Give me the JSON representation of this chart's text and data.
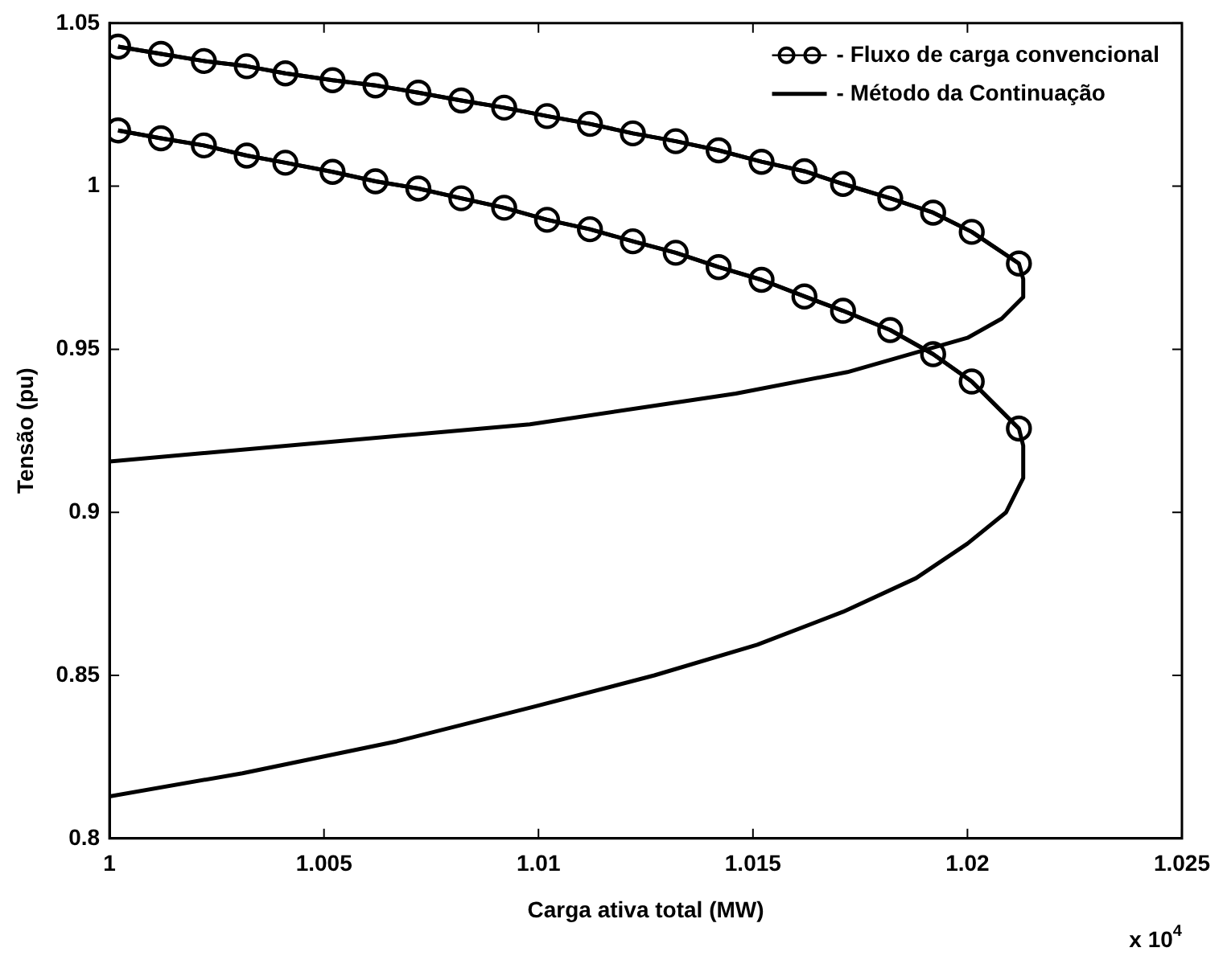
{
  "chart_data": {
    "type": "line",
    "xlabel": "Carga ativa total (MW)",
    "ylabel": "Tensão (pu)",
    "annotations": [
      "x 10$^{4}$"
    ],
    "xlim": [
      1,
      1.025
    ],
    "xticks": [
      1,
      1.005,
      1.01,
      1.015,
      1.02,
      1.025
    ],
    "ylim": [
      0.8,
      1.05
    ],
    "yticks": [
      0.8,
      0.85,
      0.9,
      0.95,
      1,
      1.05
    ],
    "grid": false,
    "legend": "top right",
    "line_style": "solid",
    "series": [
      {
        "name": "- Fluxo de carga convencional",
        "color": "#000000",
        "marker": "circle",
        "x": [
          1.0002,
          1.0012,
          1.0022,
          1.0032,
          1.0041,
          1.0052,
          1.0062,
          1.0072,
          1.0082,
          1.0092,
          1.0102,
          1.0112,
          1.0122,
          1.0132,
          1.0142,
          1.0152,
          1.0162,
          1.0171,
          1.0182,
          1.0192,
          1.0201,
          1.0212
        ],
        "values": [
          1.0428,
          1.0406,
          1.0384,
          1.0368,
          1.0346,
          1.0325,
          1.0309,
          1.0287,
          1.0263,
          1.0241,
          1.0215,
          1.0191,
          1.0162,
          1.0138,
          1.011,
          1.0075,
          1.0046,
          1.0007,
          0.9963,
          0.9919,
          0.986,
          0.9763
        ]
      },
      {
        "color": "#000000",
        "marker": "circle",
        "x": [
          1.0002,
          1.0012,
          1.0022,
          1.0032,
          1.0041,
          1.0052,
          1.0062,
          1.0072,
          1.0082,
          1.0092,
          1.0102,
          1.0112,
          1.0122,
          1.0132,
          1.0142,
          1.0152,
          1.0162,
          1.0171,
          1.0182,
          1.0192,
          1.0201,
          1.0212
        ],
        "values": [
          1.0171,
          1.0147,
          1.0125,
          1.0094,
          1.0072,
          1.0044,
          1.0015,
          0.9993,
          0.9963,
          0.9934,
          0.9897,
          0.9868,
          0.9831,
          0.9796,
          0.9752,
          0.9713,
          0.9662,
          0.9618,
          0.9559,
          0.9485,
          0.9401,
          0.9257
        ]
      },
      {
        "name": "- Método da Continuação",
        "color": "#000000",
        "marker": "none",
        "x": [
          1.0002,
          1.0012,
          1.0022,
          1.0032,
          1.0041,
          1.0052,
          1.0062,
          1.0072,
          1.0082,
          1.0092,
          1.0102,
          1.0112,
          1.0122,
          1.0132,
          1.0142,
          1.0152,
          1.0162,
          1.0171,
          1.0182,
          1.0192,
          1.0201,
          1.0212,
          1.0213,
          1.0213,
          1.0208,
          1.02,
          1.0172,
          1.0146,
          1.0098,
          1.0
        ],
        "values": [
          1.0428,
          1.0406,
          1.0384,
          1.0368,
          1.0346,
          1.0325,
          1.0309,
          1.0287,
          1.0263,
          1.0241,
          1.0215,
          1.0191,
          1.0162,
          1.0138,
          1.011,
          1.0075,
          1.0046,
          1.0007,
          0.9963,
          0.9919,
          0.986,
          0.9763,
          0.9715,
          0.966,
          0.9594,
          0.9535,
          0.943,
          0.9364,
          0.927,
          0.9156
        ]
      },
      {
        "color": "#000000",
        "marker": "none",
        "x": [
          1.0002,
          1.0012,
          1.0022,
          1.0032,
          1.0041,
          1.0052,
          1.0062,
          1.0072,
          1.0082,
          1.0092,
          1.0102,
          1.0112,
          1.0122,
          1.0132,
          1.0142,
          1.0152,
          1.0162,
          1.0171,
          1.0182,
          1.0192,
          1.0201,
          1.0212,
          1.0213,
          1.0213,
          1.0209,
          1.02,
          1.0188,
          1.0171,
          1.0151,
          1.0127,
          1.0099,
          1.0067,
          1.0031,
          1.0
        ],
        "values": [
          1.0171,
          1.0147,
          1.0125,
          1.0094,
          1.0072,
          1.0044,
          1.0015,
          0.9993,
          0.9963,
          0.9934,
          0.9897,
          0.9868,
          0.9831,
          0.9796,
          0.9752,
          0.9713,
          0.9662,
          0.9618,
          0.9559,
          0.9485,
          0.9401,
          0.9257,
          0.9204,
          0.9105,
          0.9,
          0.8904,
          0.8798,
          0.8695,
          0.8594,
          0.85,
          0.8404,
          0.8298,
          0.82,
          0.8129
        ]
      }
    ]
  }
}
